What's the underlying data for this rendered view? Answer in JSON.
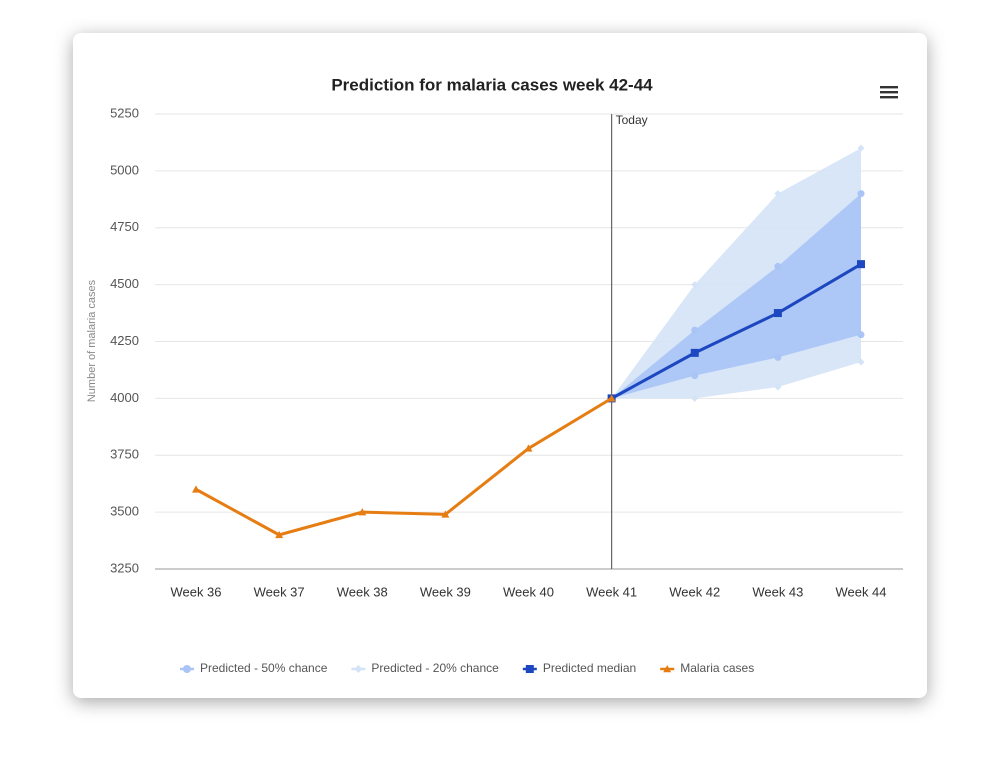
{
  "chart_data": {
    "type": "line",
    "title": "Prediction for malaria cases week 42-44",
    "y_label": "Number of malaria cases",
    "categories": [
      "Week 36",
      "Week 37",
      "Week 38",
      "Week 39",
      "Week 40",
      "Week 41",
      "Week 42",
      "Week 43",
      "Week 44"
    ],
    "series": [
      {
        "name": "Predicted - 50% chance",
        "color": "#a9c4f5",
        "type": "range",
        "marker": "circle",
        "low": [
          null,
          null,
          null,
          null,
          null,
          4000,
          4100,
          4180,
          4280
        ],
        "high": [
          null,
          null,
          null,
          null,
          null,
          4000,
          4300,
          4580,
          4900
        ]
      },
      {
        "name": "Predicted - 20% chance",
        "color": "#d4e3f7",
        "type": "range",
        "marker": "diamond",
        "low": [
          null,
          null,
          null,
          null,
          null,
          4000,
          4000,
          4050,
          4160
        ],
        "high": [
          null,
          null,
          null,
          null,
          null,
          4000,
          4500,
          4900,
          5100
        ]
      },
      {
        "name": "Predicted median",
        "color": "#1c47c0",
        "type": "line",
        "marker": "square",
        "values": [
          null,
          null,
          null,
          null,
          null,
          4000,
          4200,
          4375,
          4590
        ]
      },
      {
        "name": "Malaria cases",
        "color": "#e67d13",
        "type": "line",
        "marker": "triangle",
        "values": [
          3600,
          3400,
          3500,
          3490,
          3780,
          4000,
          null,
          null,
          null
        ]
      }
    ],
    "annotations": [
      {
        "x": "Week 41",
        "label": "Today"
      }
    ],
    "ylim": [
      3250,
      5250
    ],
    "yticks": [
      3250,
      3500,
      3750,
      4000,
      4250,
      4500,
      4750,
      5000,
      5250
    ],
    "grid": true,
    "legend": "bottom"
  }
}
